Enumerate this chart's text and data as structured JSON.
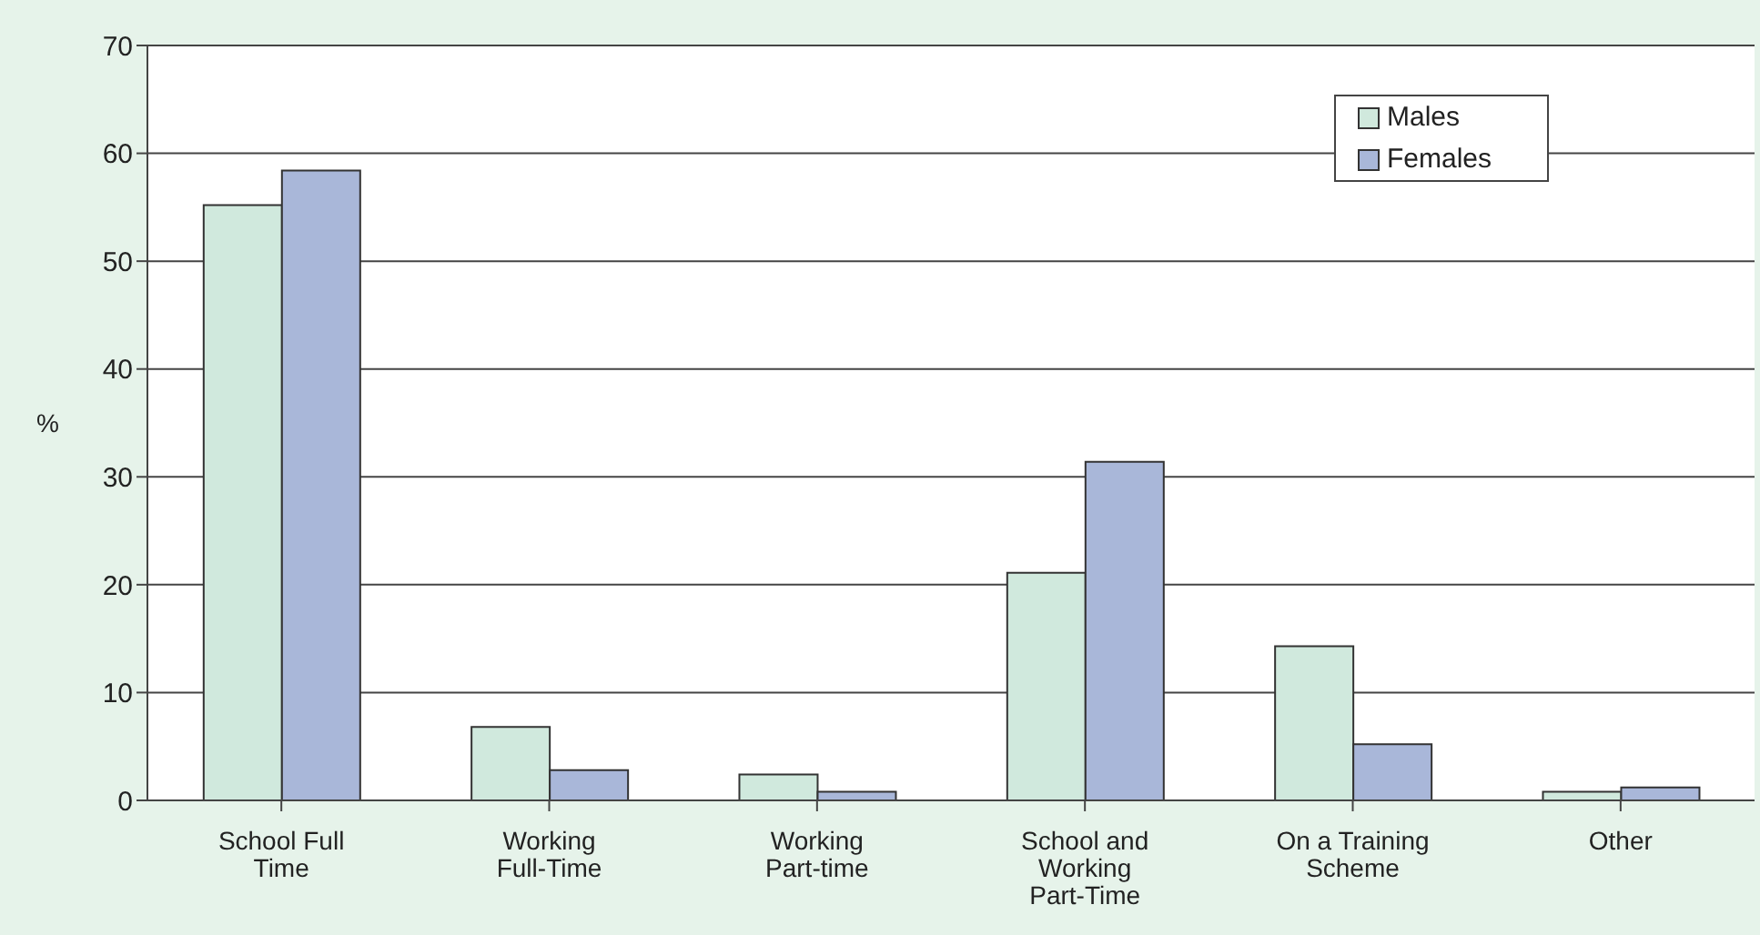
{
  "chart_data": {
    "type": "bar",
    "ylabel": "%",
    "categories": [
      "School Full Time",
      "Working Full-Time",
      "Working Part-time",
      "School and Working Part-Time",
      "On a Training Scheme",
      "Other"
    ],
    "series": [
      {
        "name": "Males",
        "color": "#d0e9dd",
        "values": [
          55.2,
          6.8,
          2.4,
          21.1,
          14.3,
          0.8
        ]
      },
      {
        "name": "Females",
        "color": "#a9b7d9",
        "values": [
          58.4,
          2.8,
          0.8,
          31.4,
          5.2,
          1.2
        ]
      }
    ],
    "ylim": [
      0,
      70
    ],
    "yticks": [
      0,
      10,
      20,
      30,
      40,
      50,
      60,
      70
    ],
    "grid": "y",
    "legend": "top right"
  }
}
